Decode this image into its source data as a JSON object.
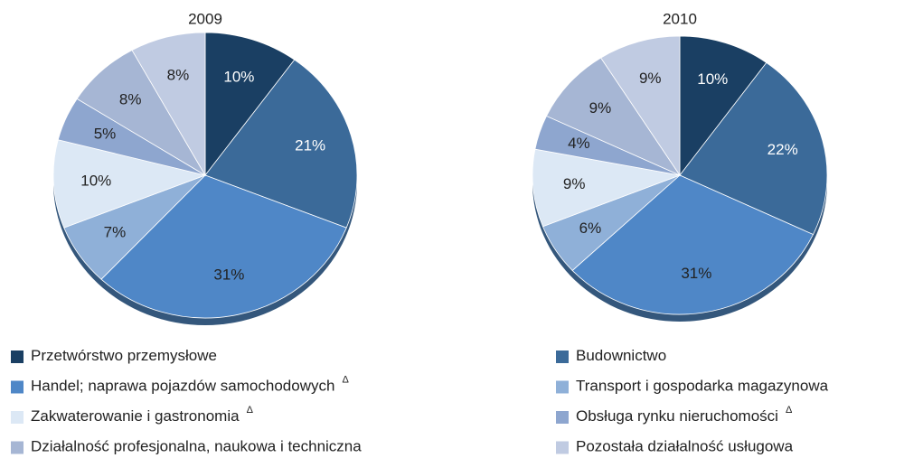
{
  "legend": {
    "items": [
      {
        "label": "Przetwórstwo przemysłowe"
      },
      {
        "label": "Budownictwo"
      },
      {
        "label": "Handel; naprawa pojazdów samochodowych",
        "note": "Δ"
      },
      {
        "label": "Transport i gospodarka magazynowa"
      },
      {
        "label": "Zakwaterowanie i gastronomia",
        "note": "Δ"
      },
      {
        "label": "Obsługa rynku nieruchomości",
        "note": "Δ"
      },
      {
        "label": "Działalność profesjonalna, naukowa i techniczna"
      },
      {
        "label": "Pozostała działalność usługowa"
      }
    ]
  },
  "chart_data": [
    {
      "type": "pie",
      "title": "2009",
      "values": [
        10,
        21,
        31,
        7,
        10,
        5,
        8,
        8
      ],
      "value_labels": [
        "10%",
        "21%",
        "31%",
        "7%",
        "10%",
        "5%",
        "8%",
        "8%"
      ],
      "colors": [
        "#1a3f63",
        "#3b6a99",
        "#4f87c7",
        "#8fb0d8",
        "#dce8f5",
        "#8ea6cf",
        "#a6b6d4",
        "#c0cbe2"
      ]
    },
    {
      "type": "pie",
      "title": "2010",
      "values": [
        10,
        22,
        31,
        6,
        9,
        4,
        9,
        9
      ],
      "value_labels": [
        "10%",
        "22%",
        "31%",
        "6%",
        "9%",
        "4%",
        "9%",
        "9%"
      ],
      "colors": [
        "#1a3f63",
        "#3b6a99",
        "#4f87c7",
        "#8fb0d8",
        "#dce8f5",
        "#8ea6cf",
        "#a6b6d4",
        "#c0cbe2"
      ]
    }
  ]
}
